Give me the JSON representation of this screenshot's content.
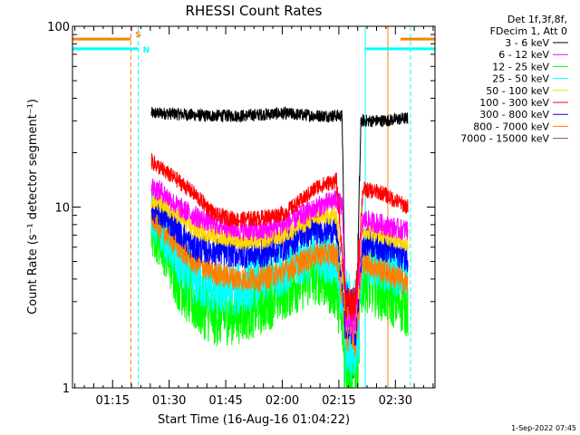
{
  "chart_data": {
    "type": "line",
    "title": "RHESSI Count Rates",
    "xlabel": "Start Time (16-Aug-16 01:04:22)",
    "ylabel": "Count Rate (s⁻¹ detector segment⁻¹)",
    "yscale": "log",
    "ylim": [
      1,
      100
    ],
    "xlim": [
      "01:04:22",
      "02:40:30"
    ],
    "y_ticks": [
      "1",
      "10",
      "100"
    ],
    "x_ticks": [
      "01:15",
      "01:30",
      "01:45",
      "02:00",
      "02:15",
      "02:30"
    ],
    "legend_header": [
      "Det 1f,3f,8f,",
      "FDecim 1, Att 0"
    ],
    "legend_placement": "right",
    "series": [
      {
        "name": "3 - 6 keV",
        "color": "#000000",
        "values": [
          [
            20.9,
            33
          ],
          [
            25,
            33
          ],
          [
            35,
            32
          ],
          [
            45,
            32
          ],
          [
            55,
            33
          ],
          [
            65,
            32
          ],
          [
            71.5,
            32
          ],
          [
            72.5,
            1.5
          ],
          [
            75,
            1.3
          ],
          [
            76.5,
            30
          ],
          [
            82,
            30
          ],
          [
            89,
            31
          ]
        ]
      },
      {
        "name": "6 - 12 keV",
        "color": "#ff00ff",
        "values": [
          [
            20.9,
            13
          ],
          [
            24,
            12
          ],
          [
            28,
            10
          ],
          [
            32,
            9
          ],
          [
            38,
            8
          ],
          [
            44,
            7.5
          ],
          [
            50,
            7.3
          ],
          [
            56,
            8
          ],
          [
            61,
            9
          ],
          [
            65,
            10
          ],
          [
            70,
            11
          ],
          [
            71.5,
            10
          ],
          [
            72.5,
            2.6
          ],
          [
            75,
            2.4
          ],
          [
            77,
            8.5
          ],
          [
            82,
            8
          ],
          [
            87,
            7.5
          ],
          [
            89,
            7.5
          ]
        ]
      },
      {
        "name": "12 - 25 keV",
        "color": "#00ff00",
        "values": [
          [
            20.9,
            8
          ],
          [
            24,
            6.5
          ],
          [
            28,
            4
          ],
          [
            32,
            3
          ],
          [
            38,
            2.5
          ],
          [
            44,
            2.6
          ],
          [
            50,
            2.9
          ],
          [
            56,
            3.5
          ],
          [
            61,
            4
          ],
          [
            65,
            4.3
          ],
          [
            70,
            3.5
          ],
          [
            72.5,
            1.6
          ],
          [
            75,
            1.5
          ],
          [
            77,
            4
          ],
          [
            82,
            3.5
          ],
          [
            87,
            3
          ],
          [
            89,
            2.8
          ]
        ]
      },
      {
        "name": "25 - 50 keV",
        "color": "#00ffff",
        "values": [
          [
            20.9,
            9
          ],
          [
            24,
            7.5
          ],
          [
            28,
            5
          ],
          [
            32,
            4
          ],
          [
            38,
            3.5
          ],
          [
            44,
            3.5
          ],
          [
            50,
            4
          ],
          [
            56,
            4.6
          ],
          [
            61,
            5.1
          ],
          [
            65,
            5.6
          ],
          [
            70,
            5
          ],
          [
            72.5,
            2.2
          ],
          [
            75,
            2
          ],
          [
            77,
            5
          ],
          [
            82,
            4.8
          ],
          [
            87,
            4.3
          ],
          [
            89,
            4.2
          ]
        ]
      },
      {
        "name": "50 - 100 keV",
        "color": "#ffd700",
        "values": [
          [
            20.9,
            11
          ],
          [
            24,
            10
          ],
          [
            28,
            9
          ],
          [
            32,
            7.5
          ],
          [
            38,
            7
          ],
          [
            44,
            6.5
          ],
          [
            50,
            6.5
          ],
          [
            56,
            7
          ],
          [
            61,
            8
          ],
          [
            65,
            8.8
          ],
          [
            70,
            9
          ],
          [
            72.5,
            2.6
          ],
          [
            75,
            2.4
          ],
          [
            77,
            7.5
          ],
          [
            82,
            7
          ],
          [
            87,
            6.5
          ],
          [
            89,
            6.3
          ]
        ]
      },
      {
        "name": "100 - 300 keV",
        "color": "#ff0000",
        "values": [
          [
            20.9,
            18
          ],
          [
            24,
            16
          ],
          [
            28,
            14
          ],
          [
            32,
            12
          ],
          [
            38,
            9
          ],
          [
            44,
            8.5
          ],
          [
            50,
            8.7
          ],
          [
            56,
            9.2
          ],
          [
            61,
            11
          ],
          [
            65,
            13
          ],
          [
            70,
            14
          ],
          [
            72.5,
            3
          ],
          [
            75,
            2.8
          ],
          [
            77,
            12.5
          ],
          [
            82,
            12
          ],
          [
            87,
            10.5
          ],
          [
            89,
            10
          ]
        ]
      },
      {
        "name": "300 - 800 keV",
        "color": "#0000ff",
        "values": [
          [
            20.9,
            10
          ],
          [
            24,
            9
          ],
          [
            28,
            7.5
          ],
          [
            32,
            6
          ],
          [
            38,
            5.7
          ],
          [
            44,
            5.5
          ],
          [
            50,
            5.5
          ],
          [
            56,
            6
          ],
          [
            61,
            7
          ],
          [
            65,
            7.5
          ],
          [
            70,
            7.5
          ],
          [
            72.5,
            2.6
          ],
          [
            75,
            2.4
          ],
          [
            77,
            6.5
          ],
          [
            82,
            6
          ],
          [
            87,
            5.5
          ],
          [
            89,
            5.2
          ]
        ]
      },
      {
        "name": "800 - 7000 keV",
        "color": "#ff8000",
        "values": [
          [
            20.9,
            9
          ],
          [
            24,
            7.5
          ],
          [
            28,
            6
          ],
          [
            32,
            5
          ],
          [
            38,
            4.3
          ],
          [
            44,
            4
          ],
          [
            50,
            4
          ],
          [
            56,
            4.4
          ],
          [
            61,
            5
          ],
          [
            65,
            5.5
          ],
          [
            70,
            5.5
          ],
          [
            72.5,
            2.3
          ],
          [
            75,
            2.1
          ],
          [
            77,
            5
          ],
          [
            82,
            4.5
          ],
          [
            87,
            4
          ],
          [
            89,
            3.7
          ]
        ]
      },
      {
        "name": "7000 - 15000 keV",
        "color": "#a0522d",
        "values": []
      }
    ],
    "attenuator_marks": [
      {
        "label": "S",
        "color": "#ff8000",
        "level": 85,
        "start": "01:04:22",
        "end": "01:19:50",
        "resume": "02:31:20"
      },
      {
        "label": "N",
        "color": "#00ffff",
        "level": 75,
        "start": "01:04:22",
        "end": "01:21:50",
        "resume": "02:22:00"
      }
    ],
    "vertical_lines": [
      {
        "time": "01:04:22",
        "color": "#00ffff",
        "style": "solid"
      },
      {
        "time": "01:19:50",
        "color": "#ff8000",
        "style": "dashed"
      },
      {
        "time": "01:21:50",
        "color": "#00ffff",
        "style": "dashed"
      },
      {
        "time": "02:22:00",
        "color": "#00ffff",
        "style": "solid"
      },
      {
        "time": "02:28:00",
        "color": "#ff8000",
        "style": "solid"
      },
      {
        "time": "02:34:00",
        "color": "#00ffff",
        "style": "dashed"
      }
    ]
  },
  "footer": {
    "timestamp": "1-Sep-2022 07:45"
  }
}
